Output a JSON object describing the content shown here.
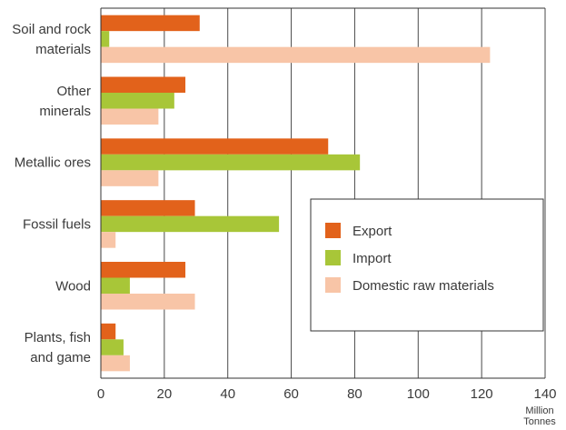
{
  "chart_data": {
    "type": "bar",
    "orientation": "horizontal",
    "categories": [
      [
        "Soil and rock",
        "materials"
      ],
      [
        "Other",
        "minerals"
      ],
      [
        "Metallic ores"
      ],
      [
        "Fossil fuels"
      ],
      [
        "Wood"
      ],
      [
        "Plants, fish",
        "and game"
      ]
    ],
    "series": [
      {
        "name": "Export",
        "color": "#e2621b",
        "values": [
          31,
          26.5,
          71.5,
          29.5,
          26.5,
          4.5
        ]
      },
      {
        "name": "Import",
        "color": "#a8c638",
        "values": [
          2.5,
          23,
          81.5,
          56,
          9,
          7
        ]
      },
      {
        "name": "Domestic raw materials",
        "color": "#f8c5a7",
        "values": [
          122.5,
          18,
          18,
          4.5,
          29.5,
          9
        ]
      }
    ],
    "xlim": [
      0,
      140
    ],
    "xticks": [
      0,
      20,
      40,
      60,
      80,
      100,
      120,
      140
    ],
    "xlabel": [
      "Million",
      "Tonnes"
    ],
    "grid": "vertical",
    "legend": "center-right"
  }
}
